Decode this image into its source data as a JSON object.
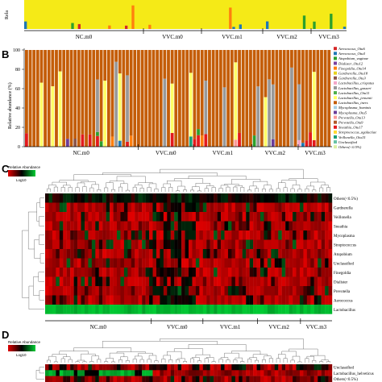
{
  "panel_labels": {
    "b": "B",
    "c": "C",
    "d": "D"
  },
  "chart_data": [
    {
      "type": "bar",
      "panel": "A",
      "ylabel": "Rela",
      "groups": [
        "NC.m0",
        "VVC.m0",
        "VVC.m1",
        "VVC.m2",
        "VVC.m3"
      ]
    },
    {
      "type": "bar",
      "panel": "B",
      "ylabel": "Relative abundance (%)",
      "yticks": [
        "0",
        "20",
        "40",
        "60",
        "80",
        "100"
      ],
      "ylim": [
        0,
        100
      ],
      "groups": [
        "NC.m0",
        "VVC.m0",
        "VVC.m1",
        "VVC.m2",
        "VVC.m3"
      ],
      "legend": [
        {
          "name": "Aerococcus_Otu6",
          "color": "#d62728"
        },
        {
          "name": "Aerococcus_Otu4",
          "color": "#1f77b4"
        },
        {
          "name": "Atopobium_vaginae",
          "color": "#2ca02c"
        },
        {
          "name": "Dialister_Otu12",
          "color": "#7a3f9d"
        },
        {
          "name": "Finegoldia_Otu14",
          "color": "#ff7f0e"
        },
        {
          "name": "Gardnerella_Otu18",
          "color": "#e6d31e"
        },
        {
          "name": "Gardnerella_Otu3",
          "color": "#8c564b"
        },
        {
          "name": "Lactobacillus_crispatus",
          "color": "#f4a6c8"
        },
        {
          "name": "Lactobacillus_gasseri",
          "color": "#999999"
        },
        {
          "name": "Lactobacillus_Otu11",
          "color": "#4daf4a"
        },
        {
          "name": "Lactobacillus_jensenii",
          "color": "#ffff66"
        },
        {
          "name": "Lactobacillus_iners",
          "color": "#c45d08"
        },
        {
          "name": "Mycoplasma_hominis",
          "color": "#a6cee3"
        },
        {
          "name": "Mycoplasma_Otu5",
          "color": "#6a3d9a"
        },
        {
          "name": "Prevotella_Otu13",
          "color": "#fb9a99"
        },
        {
          "name": "Prevotella_Otu9",
          "color": "#b15928"
        },
        {
          "name": "Sneathia_Otu17",
          "color": "#e31a1c"
        },
        {
          "name": "Streptococcus_agalactiae",
          "color": "#ffd92f"
        },
        {
          "name": "Veillonella_Otu15",
          "color": "#1b9e77"
        },
        {
          "name": "Unclassified",
          "color": "#66c2a5"
        },
        {
          "name": "Others(<0.5%)",
          "color": "#d9f0a3"
        }
      ]
    },
    {
      "type": "heatmap",
      "panel": "C",
      "legend_title": "Relative Abundance",
      "scale_label": "Log10",
      "rows": [
        "Others(<0.5%)",
        "Gardnerella",
        "Veillonella",
        "Sneathia",
        "Mycoplasma",
        "Streptococcus",
        "Atopobium",
        "Unclassified",
        "Finegoldia",
        "Dialister",
        "Prevotella",
        "Aerococcus",
        "Lactobacillus"
      ],
      "groups": [
        "NC.m0",
        "VVC.m0",
        "VVC.m1",
        "VVC.m2",
        "VVC.m3"
      ]
    },
    {
      "type": "heatmap",
      "panel": "D",
      "legend_title": "Relative Abundance",
      "scale_label": "Log10",
      "rows": [
        "Unclassified",
        "Lactobacillus_helveticus",
        "Others(<0.5%)"
      ]
    }
  ]
}
